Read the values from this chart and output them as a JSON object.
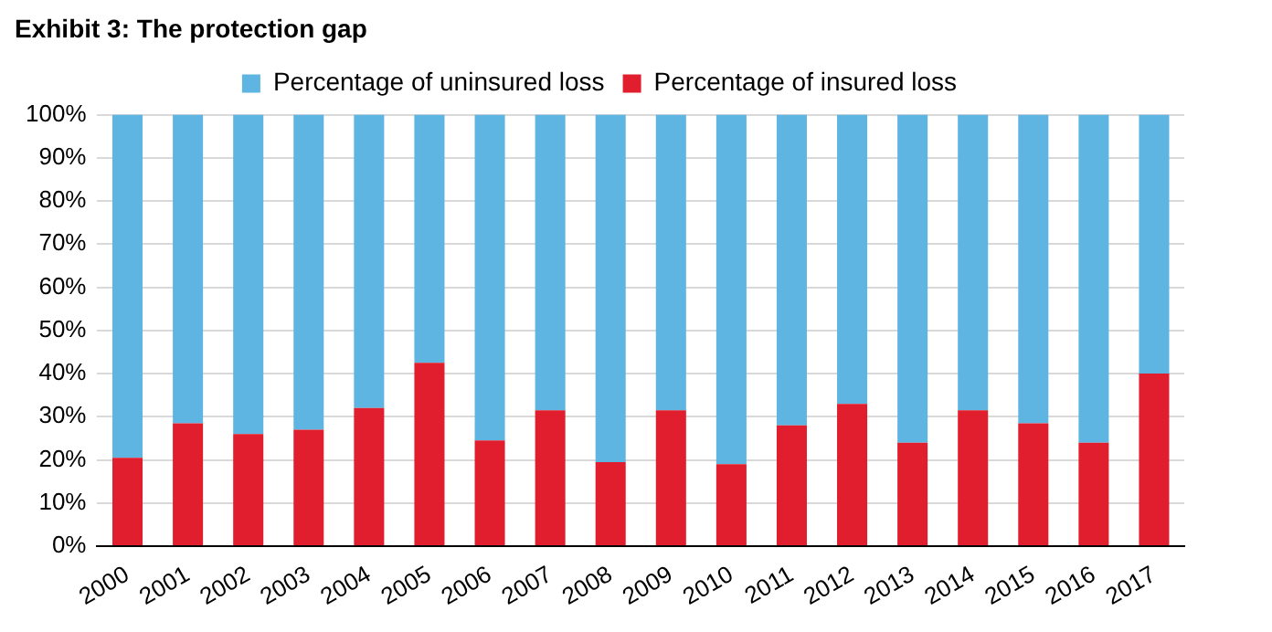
{
  "chart_data": {
    "type": "bar",
    "title": "Exhibit 3: The protection gap",
    "stacked": true,
    "categories": [
      "2000",
      "2001",
      "2002",
      "2003",
      "2004",
      "2005",
      "2006",
      "2007",
      "2008",
      "2009",
      "2010",
      "2011",
      "2012",
      "2013",
      "2014",
      "2015",
      "2016",
      "2017"
    ],
    "series": [
      {
        "name": "Percentage of insured loss",
        "color": "#e01e2d",
        "values": [
          20.5,
          28.5,
          26,
          27,
          32,
          42.5,
          24.5,
          31.5,
          19.5,
          31.5,
          19,
          28,
          33,
          24,
          31.5,
          28.5,
          24,
          40
        ]
      },
      {
        "name": "Percentage of uninsured loss",
        "color": "#5fb5e1",
        "values": [
          79.5,
          71.5,
          74,
          73,
          68,
          57.5,
          75.5,
          68.5,
          80.5,
          68.5,
          81,
          72,
          67,
          76,
          68.5,
          71.5,
          76,
          60
        ]
      }
    ],
    "ylim": [
      0,
      100
    ],
    "yticks": [
      {
        "value": 0,
        "label": "0%"
      },
      {
        "value": 10,
        "label": "10%"
      },
      {
        "value": 20,
        "label": "20%"
      },
      {
        "value": 30,
        "label": "30%"
      },
      {
        "value": 40,
        "label": "40%"
      },
      {
        "value": 50,
        "label": "50%"
      },
      {
        "value": 60,
        "label": "60%"
      },
      {
        "value": 70,
        "label": "70%"
      },
      {
        "value": 80,
        "label": "80%"
      },
      {
        "value": 90,
        "label": "90%"
      },
      {
        "value": 100,
        "label": "100%"
      }
    ],
    "grid": "y",
    "legend": "top"
  }
}
